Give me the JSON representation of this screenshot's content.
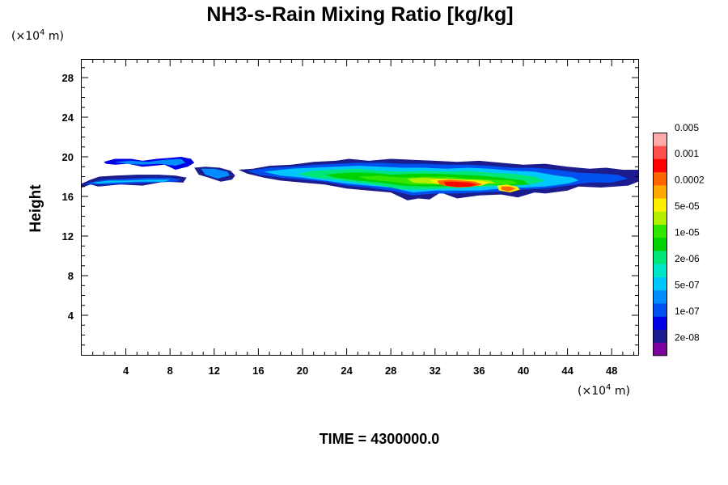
{
  "chart_data": {
    "type": "heatmap",
    "title": "NH3-s-Rain Mixing Ratio [kg/kg]",
    "xlabel": "",
    "ylabel": "Height",
    "x_unit": {
      "prefix": "(×10",
      "exponent": "4",
      "suffix": " m)"
    },
    "y_unit": {
      "prefix": "(×10",
      "exponent": "4",
      "suffix": " m)"
    },
    "xlim": [
      0,
      50.4
    ],
    "ylim": [
      0,
      29.8
    ],
    "x_ticks": [
      4,
      8,
      12,
      16,
      20,
      24,
      28,
      32,
      36,
      40,
      44,
      48
    ],
    "y_ticks": [
      4,
      8,
      12,
      16,
      20,
      24,
      28
    ],
    "time_label": "TIME = 4300000.0",
    "colorbar": {
      "levels": [
        "2e-08",
        "1e-07",
        "5e-07",
        "2e-06",
        "1e-05",
        "5e-05",
        "0.0002",
        "0.001",
        "0.005"
      ],
      "colors": [
        "#7f00a0",
        "#1c1c8e",
        "#0000e6",
        "#0050f0",
        "#008cff",
        "#00c8ff",
        "#00e6c8",
        "#00e678",
        "#00d200",
        "#32e600",
        "#b4ee00",
        "#ffee00",
        "#ffa800",
        "#ff6400",
        "#ff0000",
        "#ff5050",
        "#ffaaaa"
      ]
    },
    "regions": [
      {
        "level": 1,
        "x": [
          0,
          0.8,
          1.6,
          3,
          5,
          7,
          8.5,
          9.5,
          9.2,
          7.5,
          5.5,
          3.5,
          1.5,
          0.8,
          0
        ],
        "y": [
          17.3,
          17.7,
          18,
          18.1,
          18.2,
          18.2,
          18.1,
          17.9,
          17.4,
          17.5,
          17.1,
          17.2,
          17,
          17.2,
          16.9
        ]
      },
      {
        "level": 3,
        "x": [
          0.3,
          2,
          4,
          6,
          8,
          9,
          8.5,
          6.5,
          4.5,
          2.5,
          0.5
        ],
        "y": [
          17.3,
          17.7,
          17.8,
          17.9,
          17.9,
          17.7,
          17.5,
          17.4,
          17.3,
          17.2,
          17.2
        ]
      },
      {
        "level": 5,
        "x": [
          1,
          2.5,
          4,
          6,
          8,
          7.5,
          5,
          3,
          1.5
        ],
        "y": [
          17.4,
          17.6,
          17.6,
          17.7,
          17.7,
          17.5,
          17.5,
          17.4,
          17.3
        ]
      },
      {
        "level": 2,
        "x": [
          2,
          3,
          4.5,
          5.5,
          6.8,
          8,
          9,
          9.9,
          10.2,
          9.6,
          8.5,
          7.5,
          6.5,
          5.5,
          4.2,
          3,
          2.2
        ],
        "y": [
          19.5,
          19.8,
          19.8,
          19.6,
          19.8,
          19.9,
          20,
          19.8,
          19.4,
          19,
          18.7,
          19.2,
          19.1,
          19,
          19.3,
          19.2,
          19.3
        ]
      },
      {
        "level": 4,
        "x": [
          3,
          4.5,
          6,
          7.5,
          9,
          9.4,
          8.5,
          7,
          5.5,
          4
        ],
        "y": [
          19.5,
          19.6,
          19.5,
          19.7,
          19.8,
          19.4,
          19.1,
          19.3,
          19.2,
          19.3
        ]
      },
      {
        "level": 1,
        "x": [
          10.2,
          11.2,
          12.5,
          13.5,
          13.9,
          13.6,
          12.6,
          11.5,
          10.6
        ],
        "y": [
          18.9,
          19,
          18.9,
          18.6,
          18.1,
          17.7,
          17.5,
          17.9,
          18.2
        ]
      },
      {
        "level": 4,
        "x": [
          10.8,
          12,
          13.2,
          13.4,
          12.3,
          11.2
        ],
        "y": [
          18.8,
          18.8,
          18.5,
          18.1,
          17.8,
          18.2
        ]
      },
      {
        "level": 1,
        "x": [
          14.2,
          15.5,
          17,
          19,
          21,
          23,
          24.2,
          26,
          28,
          30,
          32,
          34,
          36,
          38,
          40,
          42,
          44,
          46,
          47.5,
          49,
          50.4,
          50.4,
          49.5,
          47,
          45,
          44,
          42,
          41,
          39.5,
          38,
          36,
          34,
          32.5,
          31.5,
          30.5,
          29.5,
          28,
          26,
          24,
          22,
          20,
          18,
          16.5,
          15
        ],
        "y": [
          18.7,
          18.8,
          19.1,
          19.2,
          19.5,
          19.6,
          19.8,
          19.6,
          19.8,
          19.7,
          19.6,
          19.5,
          19.6,
          19.4,
          19.2,
          19.3,
          19,
          18.8,
          18.9,
          18.7,
          18.7,
          17.5,
          17.1,
          16.9,
          17,
          16.6,
          16.3,
          16.4,
          15.9,
          16.2,
          16.1,
          15.8,
          16.4,
          15.7,
          15.8,
          15.6,
          16.4,
          16.6,
          16.8,
          17.2,
          17.4,
          17.6,
          17.9,
          18.3
        ]
      },
      {
        "level": 3,
        "x": [
          15,
          17,
          19,
          21,
          23,
          25,
          27,
          29,
          31,
          33,
          35,
          37,
          39,
          41,
          43,
          45,
          47,
          48.5,
          49.5,
          48,
          46,
          44,
          42,
          40,
          38,
          36,
          34,
          32,
          30,
          28,
          26,
          24,
          22,
          20,
          18,
          16
        ],
        "y": [
          18.6,
          18.9,
          19,
          19.2,
          19.3,
          19.4,
          19.4,
          19.3,
          19.3,
          19.2,
          19.2,
          19.1,
          18.9,
          18.9,
          18.7,
          18.4,
          18.3,
          18.2,
          17.8,
          17.4,
          17.4,
          17.1,
          16.8,
          16.7,
          16.5,
          16.4,
          16.3,
          16.3,
          16.1,
          16.6,
          16.9,
          17.1,
          17.5,
          17.7,
          17.9,
          18.2
        ]
      },
      {
        "level": 5,
        "x": [
          16.5,
          19,
          21,
          23,
          25,
          27,
          29,
          31,
          33,
          35,
          37,
          39,
          41,
          43,
          44.5,
          45,
          44,
          42,
          40,
          38,
          36,
          34,
          32,
          30,
          28,
          26,
          24,
          22,
          20,
          18
        ],
        "y": [
          18.5,
          18.8,
          18.9,
          19,
          19.1,
          19,
          18.9,
          18.9,
          18.8,
          18.9,
          18.8,
          18.6,
          18.5,
          18.1,
          17.9,
          17.6,
          17.3,
          17,
          16.9,
          16.8,
          16.6,
          16.6,
          16.6,
          16.4,
          16.9,
          17.1,
          17.3,
          17.6,
          17.9,
          18.1
        ]
      },
      {
        "level": 7,
        "x": [
          19.5,
          21,
          23,
          25,
          27,
          29,
          31,
          33,
          35,
          37,
          39,
          41,
          42,
          41,
          39,
          37,
          35,
          33,
          31,
          29,
          27,
          25,
          23,
          21
        ],
        "y": [
          18.3,
          18.6,
          18.7,
          18.8,
          18.6,
          18.5,
          18.6,
          18.5,
          18.6,
          18.4,
          18.3,
          18,
          17.6,
          17.3,
          17.1,
          17,
          16.9,
          16.8,
          16.7,
          16.7,
          17.1,
          17.4,
          17.7,
          17.9
        ]
      },
      {
        "level": 8,
        "x": [
          22,
          24,
          26,
          28,
          30,
          32,
          34,
          36,
          38,
          40,
          40.5,
          39,
          37,
          35,
          33,
          31,
          29,
          27,
          25,
          23
        ],
        "y": [
          18.2,
          18.4,
          18.4,
          18.2,
          18.3,
          18.3,
          18.2,
          18.1,
          17.9,
          17.6,
          17.2,
          17.1,
          17.2,
          17.1,
          17,
          17,
          17.1,
          17.4,
          17.6,
          17.9
        ]
      },
      {
        "level": 9,
        "x": [
          25,
          27,
          29,
          31,
          33,
          35,
          37,
          39,
          39.5,
          38,
          36,
          34,
          32,
          30,
          28,
          26
        ],
        "y": [
          18,
          18.1,
          17.9,
          18,
          18,
          17.8,
          17.7,
          17.6,
          17.3,
          17.2,
          17.3,
          17.2,
          17.2,
          17.2,
          17.5,
          17.7
        ]
      },
      {
        "level": 10,
        "x": [
          29.5,
          31,
          32.5,
          34,
          35.5,
          37,
          37.5,
          36,
          34.5,
          33,
          31.5,
          30
        ],
        "y": [
          17.8,
          17.9,
          17.8,
          17.7,
          17.7,
          17.6,
          17.3,
          17.4,
          17.2,
          17.3,
          17.3,
          17.4
        ]
      },
      {
        "level": 11,
        "x": [
          31.5,
          33,
          34.5,
          36,
          37,
          36.2,
          34.5,
          33,
          32
        ],
        "y": [
          17.7,
          17.8,
          17.7,
          17.6,
          17.4,
          17.1,
          17,
          17.1,
          17.3
        ]
      },
      {
        "level": 13,
        "x": [
          32.2,
          33.3,
          34.5,
          35.6,
          36.3,
          35.5,
          34.3,
          33.2,
          32.4
        ],
        "y": [
          17.6,
          17.7,
          17.6,
          17.5,
          17.2,
          17,
          16.9,
          17,
          17.2
        ]
      },
      {
        "level": 14,
        "x": [
          32.8,
          33.8,
          35,
          35.8,
          35.2,
          34,
          33
        ],
        "y": [
          17.5,
          17.5,
          17.4,
          17.2,
          17,
          16.95,
          17.1
        ]
      },
      {
        "level": 11,
        "x": [
          37.6,
          38.5,
          39.4,
          39.7,
          38.8,
          37.8
        ],
        "y": [
          17.1,
          17.2,
          17,
          16.7,
          16.4,
          16.6
        ]
      },
      {
        "level": 13,
        "x": [
          38,
          38.8,
          39.3,
          38.7,
          38
        ],
        "y": [
          17,
          17,
          16.8,
          16.5,
          16.7
        ]
      }
    ]
  }
}
